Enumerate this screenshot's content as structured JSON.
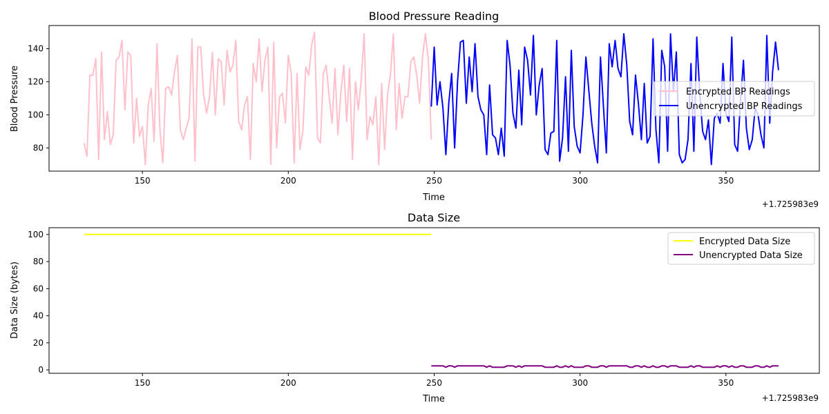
{
  "chart_data": [
    {
      "type": "line",
      "title": "Blood Pressure Reading",
      "xlabel": "Time",
      "ylabel": "Blood Pressure",
      "x_offset_label": "+1.725983e9",
      "xlim": [
        118,
        382
      ],
      "ylim": [
        66,
        154
      ],
      "xticks": [
        150,
        200,
        250,
        300,
        350
      ],
      "yticks": [
        80,
        100,
        120,
        140
      ],
      "legend_position": "center-right",
      "series": [
        {
          "name": "Encrypted BP Readings",
          "color": "#ffc0cb",
          "x_start": 130,
          "x_step": 1,
          "values": [
            83,
            75,
            124,
            124,
            134,
            73,
            138,
            85,
            102,
            82,
            88,
            133,
            135,
            145,
            103,
            138,
            136,
            83,
            110,
            87,
            93,
            70,
            106,
            116,
            84,
            143,
            91,
            71,
            116,
            117,
            112,
            126,
            136,
            91,
            85,
            92,
            98,
            146,
            72,
            141,
            141,
            112,
            101,
            111,
            138,
            100,
            134,
            132,
            106,
            139,
            126,
            130,
            145,
            96,
            91,
            106,
            111,
            73,
            131,
            120,
            146,
            114,
            133,
            141,
            70,
            144,
            80,
            111,
            113,
            95,
            136,
            125,
            71,
            125,
            79,
            90,
            129,
            124,
            142,
            150,
            86,
            83,
            125,
            130,
            111,
            95,
            128,
            88,
            113,
            130,
            96,
            128,
            73,
            120,
            103,
            121,
            149,
            85,
            99,
            94,
            111,
            70,
            119,
            79,
            112,
            124,
            149,
            91,
            119,
            98,
            111,
            111,
            132,
            135,
            124,
            107,
            135,
            149,
            133,
            85
          ]
        },
        {
          "name": "Unencrypted BP Readings",
          "color": "#0000ff",
          "x_start": 249,
          "x_step": 1,
          "values": [
            105,
            141,
            106,
            120,
            104,
            76,
            107,
            125,
            80,
            120,
            144,
            145,
            107,
            135,
            114,
            143,
            111,
            103,
            100,
            76,
            118,
            88,
            86,
            76,
            92,
            75,
            145,
            130,
            101,
            92,
            127,
            94,
            141,
            133,
            112,
            148,
            100,
            118,
            128,
            79,
            76,
            89,
            90,
            145,
            72,
            86,
            123,
            78,
            139,
            93,
            81,
            77,
            100,
            135,
            115,
            95,
            81,
            71,
            135,
            105,
            77,
            143,
            129,
            145,
            128,
            123,
            149,
            130,
            96,
            88,
            124,
            107,
            85,
            119,
            83,
            87,
            146,
            91,
            71,
            139,
            129,
            78,
            149,
            114,
            138,
            76,
            71,
            73,
            85,
            131,
            78,
            147,
            114,
            90,
            85,
            97,
            70,
            98,
            101,
            95,
            131,
            101,
            96,
            147,
            82,
            78,
            109,
            133,
            92,
            79,
            85,
            104,
            100,
            88,
            80,
            148,
            95,
            126,
            144,
            127
          ]
        }
      ]
    },
    {
      "type": "line",
      "title": "Data Size",
      "xlabel": "Time",
      "ylabel": "Data Size (bytes)",
      "x_offset_label": "+1.725983e9",
      "xlim": [
        118,
        382
      ],
      "ylim": [
        -2.5,
        105
      ],
      "xticks": [
        150,
        200,
        250,
        300,
        350
      ],
      "yticks": [
        0,
        20,
        40,
        60,
        80,
        100
      ],
      "legend_position": "upper-right",
      "series": [
        {
          "name": "Encrypted Data Size",
          "color": "#ffff00",
          "x_start": 130,
          "x_step": 1,
          "values": [
            100,
            100,
            100,
            100,
            100,
            100,
            100,
            100,
            100,
            100,
            100,
            100,
            100,
            100,
            100,
            100,
            100,
            100,
            100,
            100,
            100,
            100,
            100,
            100,
            100,
            100,
            100,
            100,
            100,
            100,
            100,
            100,
            100,
            100,
            100,
            100,
            100,
            100,
            100,
            100,
            100,
            100,
            100,
            100,
            100,
            100,
            100,
            100,
            100,
            100,
            100,
            100,
            100,
            100,
            100,
            100,
            100,
            100,
            100,
            100,
            100,
            100,
            100,
            100,
            100,
            100,
            100,
            100,
            100,
            100,
            100,
            100,
            100,
            100,
            100,
            100,
            100,
            100,
            100,
            100,
            100,
            100,
            100,
            100,
            100,
            100,
            100,
            100,
            100,
            100,
            100,
            100,
            100,
            100,
            100,
            100,
            100,
            100,
            100,
            100,
            100,
            100,
            100,
            100,
            100,
            100,
            100,
            100,
            100,
            100,
            100,
            100,
            100,
            100,
            100,
            100,
            100,
            100,
            100,
            100
          ]
        },
        {
          "name": "Unencrypted Data Size",
          "color": "#800080",
          "x_start": 249,
          "x_step": 1,
          "values": [
            3,
            3,
            3,
            3,
            3,
            2,
            3,
            3,
            2,
            3,
            3,
            3,
            3,
            3,
            3,
            3,
            3,
            3,
            3,
            2,
            3,
            2,
            2,
            2,
            2,
            2,
            3,
            3,
            3,
            2,
            3,
            2,
            3,
            3,
            3,
            3,
            3,
            3,
            3,
            2,
            2,
            2,
            2,
            3,
            2,
            2,
            3,
            2,
            3,
            2,
            2,
            2,
            2,
            3,
            3,
            2,
            2,
            2,
            3,
            3,
            2,
            3,
            3,
            3,
            3,
            3,
            3,
            3,
            2,
            2,
            3,
            3,
            2,
            3,
            2,
            2,
            3,
            2,
            2,
            3,
            3,
            2,
            3,
            3,
            3,
            2,
            2,
            2,
            2,
            3,
            2,
            3,
            3,
            2,
            2,
            2,
            2,
            2,
            3,
            2,
            3,
            3,
            2,
            3,
            2,
            2,
            3,
            3,
            2,
            2,
            2,
            3,
            3,
            2,
            2,
            3,
            2,
            3,
            3,
            3
          ]
        }
      ]
    }
  ]
}
